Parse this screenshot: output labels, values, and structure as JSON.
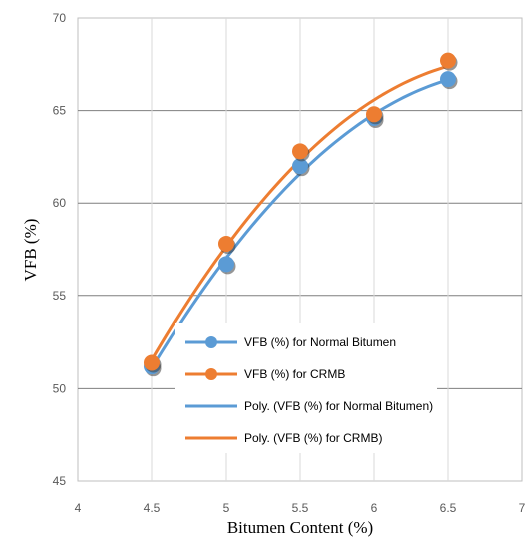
{
  "chart_data": {
    "type": "scatter",
    "title": "",
    "xlabel": "Bitumen Content (%)",
    "ylabel": "VFB (%)",
    "xlim": [
      4,
      7
    ],
    "ylim": [
      45,
      70
    ],
    "x_ticks": [
      "4",
      "4.5",
      "5",
      "5.5",
      "6",
      "6.5",
      "7"
    ],
    "y_ticks": [
      "45",
      "50",
      "55",
      "60",
      "65",
      "70"
    ],
    "x_tick_values": [
      4,
      4.5,
      5,
      5.5,
      6,
      6.5,
      7
    ],
    "y_tick_values": [
      45,
      50,
      55,
      60,
      65,
      70
    ],
    "grid": "both",
    "legend_position": "inside-bottom-center",
    "x": [
      4.5,
      5,
      5.5,
      6,
      6.5
    ],
    "series": [
      {
        "name": "VFB (%) for Normal Bitumen",
        "values": [
          51.2,
          56.7,
          62.0,
          64.6,
          66.7
        ],
        "color": "#5B9BD5",
        "kind": "points"
      },
      {
        "name": "VFB (%) for CRMB",
        "values": [
          51.4,
          57.8,
          62.8,
          64.8,
          67.7
        ],
        "color": "#ED7D31",
        "kind": "points"
      },
      {
        "name": "Poly. (VFB (%) for Normal Bitumen)",
        "fit_of": 0,
        "color": "#5B9BD5",
        "kind": "trend"
      },
      {
        "name": "Poly. (VFB (%) for CRMB)",
        "fit_of": 1,
        "color": "#ED7D31",
        "kind": "trend"
      }
    ]
  }
}
